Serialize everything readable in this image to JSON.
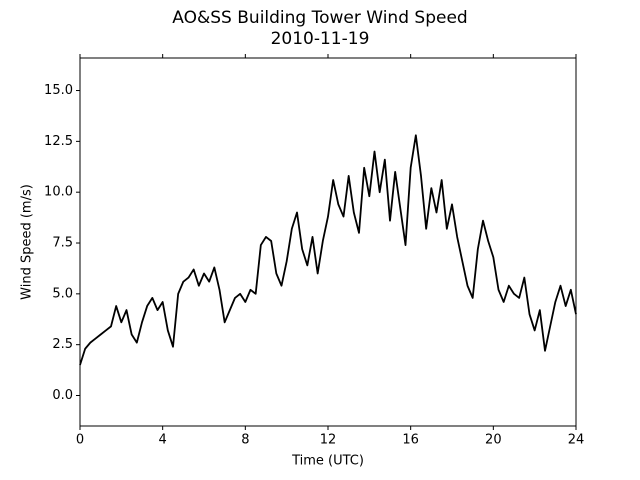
{
  "chart_data": {
    "type": "line",
    "title": "AO&SS Building Tower Wind Speed",
    "subtitle": "2010-11-19",
    "x_label": "Time (UTC)",
    "y_label": "Wind Speed (m/s)",
    "x": [
      0,
      0.25,
      0.5,
      0.75,
      1,
      1.25,
      1.5,
      1.75,
      2,
      2.25,
      2.5,
      2.75,
      3,
      3.25,
      3.5,
      3.75,
      4,
      4.25,
      4.5,
      4.75,
      5,
      5.25,
      5.5,
      5.75,
      6,
      6.25,
      6.5,
      6.75,
      7,
      7.25,
      7.5,
      7.75,
      8,
      8.25,
      8.5,
      8.75,
      9,
      9.25,
      9.5,
      9.75,
      10,
      10.25,
      10.5,
      10.75,
      11,
      11.25,
      11.5,
      11.75,
      12,
      12.25,
      12.5,
      12.75,
      13,
      13.25,
      13.5,
      13.75,
      14,
      14.25,
      14.5,
      14.75,
      15,
      15.25,
      15.5,
      15.75,
      16,
      16.25,
      16.5,
      16.75,
      17,
      17.25,
      17.5,
      17.75,
      18,
      18.25,
      18.5,
      18.75,
      19,
      19.25,
      19.5,
      19.75,
      20,
      20.25,
      20.5,
      20.75,
      21,
      21.25,
      21.5,
      21.75,
      22,
      22.25,
      22.5,
      22.75,
      23,
      23.25,
      23.5,
      23.75,
      24
    ],
    "series": [
      {
        "name": "Wind Speed",
        "color": "#000000",
        "values": [
          1.5,
          2.3,
          2.6,
          2.8,
          3.0,
          3.2,
          3.4,
          4.4,
          3.6,
          4.2,
          3.0,
          2.6,
          3.6,
          4.4,
          4.8,
          4.2,
          4.6,
          3.2,
          2.4,
          5.0,
          5.6,
          5.8,
          6.2,
          5.4,
          6.0,
          5.6,
          6.3,
          5.2,
          3.6,
          4.2,
          4.8,
          5.0,
          4.6,
          5.2,
          5.0,
          7.4,
          7.8,
          7.6,
          6.0,
          5.4,
          6.6,
          8.2,
          9.0,
          7.2,
          6.4,
          7.8,
          6.0,
          7.6,
          8.8,
          10.6,
          9.4,
          8.8,
          10.8,
          9.0,
          8.0,
          11.2,
          9.8,
          12.0,
          10.0,
          11.6,
          8.6,
          11.0,
          9.2,
          7.4,
          11.2,
          12.8,
          10.8,
          8.2,
          10.2,
          9.0,
          10.6,
          8.2,
          9.4,
          7.8,
          6.6,
          5.4,
          4.8,
          7.2,
          8.6,
          7.6,
          6.8,
          5.2,
          4.6,
          5.4,
          5.0,
          4.8,
          5.8,
          4.0,
          3.2,
          4.2,
          2.2,
          3.4,
          4.6,
          5.4,
          4.4,
          5.2,
          4.0
        ]
      }
    ],
    "xlim": [
      0,
      24
    ],
    "xticks": [
      0,
      4,
      8,
      12,
      16,
      20,
      24
    ],
    "ylim": [
      -1.5,
      16.6
    ],
    "yticks": [
      {
        "value": 0,
        "label": "0.0"
      },
      2.5,
      {
        "value": 5,
        "label": "5.0"
      },
      7.5,
      {
        "value": 10,
        "label": "10.0"
      },
      12.5,
      {
        "value": 15,
        "label": "15.0"
      }
    ]
  }
}
